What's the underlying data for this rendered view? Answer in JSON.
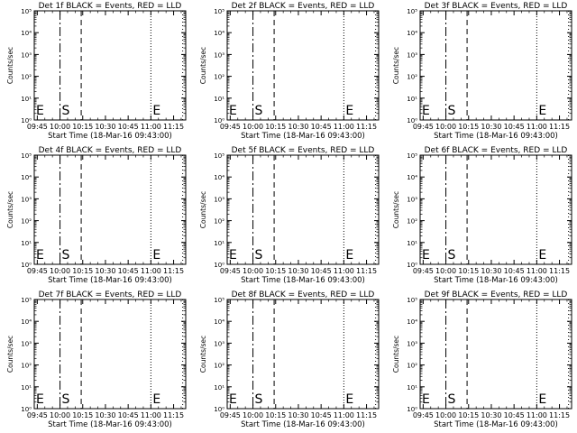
{
  "chart_data": [
    {
      "type": "line",
      "title": "Det 1f BLACK = Events, RED = LLD",
      "xlabel": "Start Time (18-Mar-16 09:43:00)",
      "ylabel": "Counts/sec",
      "xticks": [
        "09:45",
        "10:00",
        "10:15",
        "10:30",
        "10:45",
        "11:00",
        "11:15"
      ],
      "yticks": [
        "10⁰",
        "10¹",
        "10²",
        "10³",
        "10⁴",
        "10⁵"
      ],
      "xlim": [
        "09:43",
        "11:23"
      ],
      "ylim": [
        1,
        100000
      ],
      "yscale": "log",
      "markers": [
        {
          "label": "E",
          "time": "09:43"
        },
        {
          "label": "S",
          "time": "10:00"
        },
        {
          "label": "",
          "time": "10:14"
        },
        {
          "label": "E",
          "time": "11:00"
        },
        {
          "label": "",
          "time": "11:21"
        }
      ],
      "series": []
    },
    {
      "type": "line",
      "title": "Det 2f BLACK = Events, RED = LLD",
      "xlabel": "Start Time (18-Mar-16 09:43:00)",
      "ylabel": "Counts/sec",
      "xticks": [
        "09:45",
        "10:00",
        "10:15",
        "10:30",
        "10:45",
        "11:00",
        "11:15"
      ],
      "yticks": [
        "10⁰",
        "10¹",
        "10²",
        "10³",
        "10⁴",
        "10⁵"
      ],
      "xlim": [
        "09:43",
        "11:23"
      ],
      "ylim": [
        1,
        100000
      ],
      "yscale": "log",
      "markers": [
        {
          "label": "E",
          "time": "09:43"
        },
        {
          "label": "S",
          "time": "10:00"
        },
        {
          "label": "",
          "time": "10:14"
        },
        {
          "label": "E",
          "time": "11:00"
        },
        {
          "label": "",
          "time": "11:21"
        }
      ],
      "series": []
    },
    {
      "type": "line",
      "title": "Det 3f BLACK = Events, RED = LLD",
      "xlabel": "Start Time (18-Mar-16 09:43:00)",
      "ylabel": "Counts/sec",
      "xticks": [
        "09:45",
        "10:00",
        "10:15",
        "10:30",
        "10:45",
        "11:00",
        "11:15"
      ],
      "yticks": [
        "10⁰",
        "10¹",
        "10²",
        "10³",
        "10⁴",
        "10⁵"
      ],
      "xlim": [
        "09:43",
        "11:23"
      ],
      "ylim": [
        1,
        100000
      ],
      "yscale": "log",
      "markers": [
        {
          "label": "E",
          "time": "09:43"
        },
        {
          "label": "S",
          "time": "10:00"
        },
        {
          "label": "",
          "time": "10:14"
        },
        {
          "label": "E",
          "time": "11:00"
        },
        {
          "label": "",
          "time": "11:21"
        }
      ],
      "series": []
    },
    {
      "type": "line",
      "title": "Det 4f BLACK = Events, RED = LLD",
      "xlabel": "Start Time (18-Mar-16 09:43:00)",
      "ylabel": "Counts/sec",
      "xticks": [
        "09:45",
        "10:00",
        "10:15",
        "10:30",
        "10:45",
        "11:00",
        "11:15"
      ],
      "yticks": [
        "10⁰",
        "10¹",
        "10²",
        "10³",
        "10⁴",
        "10⁵"
      ],
      "xlim": [
        "09:43",
        "11:23"
      ],
      "ylim": [
        1,
        100000
      ],
      "yscale": "log",
      "markers": [
        {
          "label": "E",
          "time": "09:43"
        },
        {
          "label": "S",
          "time": "10:00"
        },
        {
          "label": "",
          "time": "10:14"
        },
        {
          "label": "E",
          "time": "11:00"
        },
        {
          "label": "",
          "time": "11:21"
        }
      ],
      "series": []
    },
    {
      "type": "line",
      "title": "Det 5f BLACK = Events, RED = LLD",
      "xlabel": "Start Time (18-Mar-16 09:43:00)",
      "ylabel": "Counts/sec",
      "xticks": [
        "09:45",
        "10:00",
        "10:15",
        "10:30",
        "10:45",
        "11:00",
        "11:15"
      ],
      "yticks": [
        "10⁰",
        "10¹",
        "10²",
        "10³",
        "10⁴",
        "10⁵"
      ],
      "xlim": [
        "09:43",
        "11:23"
      ],
      "ylim": [
        1,
        100000
      ],
      "yscale": "log",
      "markers": [
        {
          "label": "E",
          "time": "09:43"
        },
        {
          "label": "S",
          "time": "10:00"
        },
        {
          "label": "",
          "time": "10:14"
        },
        {
          "label": "E",
          "time": "11:00"
        },
        {
          "label": "",
          "time": "11:21"
        }
      ],
      "series": []
    },
    {
      "type": "line",
      "title": "Det 6f BLACK = Events, RED = LLD",
      "xlabel": "Start Time (18-Mar-16 09:43:00)",
      "ylabel": "Counts/sec",
      "xticks": [
        "09:45",
        "10:00",
        "10:15",
        "10:30",
        "10:45",
        "11:00",
        "11:15"
      ],
      "yticks": [
        "10⁰",
        "10¹",
        "10²",
        "10³",
        "10⁴",
        "10⁵"
      ],
      "xlim": [
        "09:43",
        "11:23"
      ],
      "ylim": [
        1,
        100000
      ],
      "yscale": "log",
      "markers": [
        {
          "label": "E",
          "time": "09:43"
        },
        {
          "label": "S",
          "time": "10:00"
        },
        {
          "label": "",
          "time": "10:14"
        },
        {
          "label": "E",
          "time": "11:00"
        },
        {
          "label": "",
          "time": "11:21"
        }
      ],
      "series": []
    },
    {
      "type": "line",
      "title": "Det 7f BLACK = Events, RED = LLD",
      "xlabel": "Start Time (18-Mar-16 09:43:00)",
      "ylabel": "Counts/sec",
      "xticks": [
        "09:45",
        "10:00",
        "10:15",
        "10:30",
        "10:45",
        "11:00",
        "11:15"
      ],
      "yticks": [
        "10⁰",
        "10¹",
        "10²",
        "10³",
        "10⁴",
        "10⁵"
      ],
      "xlim": [
        "09:43",
        "11:23"
      ],
      "ylim": [
        1,
        100000
      ],
      "yscale": "log",
      "markers": [
        {
          "label": "E",
          "time": "09:43"
        },
        {
          "label": "S",
          "time": "10:00"
        },
        {
          "label": "",
          "time": "10:14"
        },
        {
          "label": "E",
          "time": "11:00"
        },
        {
          "label": "",
          "time": "11:21"
        }
      ],
      "series": []
    },
    {
      "type": "line",
      "title": "Det 8f BLACK = Events, RED = LLD",
      "xlabel": "Start Time (18-Mar-16 09:43:00)",
      "ylabel": "Counts/sec",
      "xticks": [
        "09:45",
        "10:00",
        "10:15",
        "10:30",
        "10:45",
        "11:00",
        "11:15"
      ],
      "yticks": [
        "10⁰",
        "10¹",
        "10²",
        "10³",
        "10⁴",
        "10⁵"
      ],
      "xlim": [
        "09:43",
        "11:23"
      ],
      "ylim": [
        1,
        100000
      ],
      "yscale": "log",
      "markers": [
        {
          "label": "E",
          "time": "09:43"
        },
        {
          "label": "S",
          "time": "10:00"
        },
        {
          "label": "",
          "time": "10:14"
        },
        {
          "label": "E",
          "time": "11:00"
        },
        {
          "label": "",
          "time": "11:21"
        }
      ],
      "series": []
    },
    {
      "type": "line",
      "title": "Det 9f BLACK = Events, RED = LLD",
      "xlabel": "Start Time (18-Mar-16 09:43:00)",
      "ylabel": "Counts/sec",
      "xticks": [
        "09:45",
        "10:00",
        "10:15",
        "10:30",
        "10:45",
        "11:00",
        "11:15"
      ],
      "yticks": [
        "10⁰",
        "10¹",
        "10²",
        "10³",
        "10⁴",
        "10⁵"
      ],
      "xlim": [
        "09:43",
        "11:23"
      ],
      "ylim": [
        1,
        100000
      ],
      "yscale": "log",
      "markers": [
        {
          "label": "E",
          "time": "09:43"
        },
        {
          "label": "S",
          "time": "10:00"
        },
        {
          "label": "",
          "time": "10:14"
        },
        {
          "label": "E",
          "time": "11:00"
        },
        {
          "label": "",
          "time": "11:21"
        }
      ],
      "series": []
    }
  ]
}
